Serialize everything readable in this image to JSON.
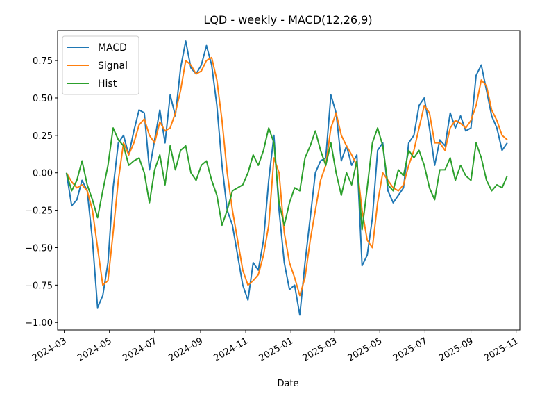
{
  "chart_data": {
    "type": "line",
    "title": "LQD - weekly - MACD(12,26,9)",
    "xlabel": "Date",
    "ylabel": "",
    "ylim": [
      -1.05,
      0.95
    ],
    "xlim": [
      "2024-02-21",
      "2025-11-06"
    ],
    "yticks": [
      -1.0,
      -0.75,
      -0.5,
      -0.25,
      0.0,
      0.25,
      0.5,
      0.75
    ],
    "ytick_labels": [
      "−1.00",
      "−0.75",
      "−0.50",
      "−0.25",
      "0.00",
      "0.25",
      "0.50",
      "0.75"
    ],
    "xticks": [
      "2024-03-01",
      "2024-05-01",
      "2024-07-01",
      "2024-09-01",
      "2024-11-01",
      "2025-01-01",
      "2025-03-01",
      "2025-05-01",
      "2025-07-01",
      "2025-09-01",
      "2025-11-01"
    ],
    "xtick_labels": [
      "2024-03",
      "2024-05",
      "2024-07",
      "2024-09",
      "2024-11",
      "2025-01",
      "2025-03",
      "2025-05",
      "2025-07",
      "2025-09",
      "2025-11"
    ],
    "legend": "upper left",
    "grid": false,
    "series": [
      {
        "name": "MACD",
        "color": "#1f77b4",
        "points": [
          [
            "2024-03-04",
            0.0
          ],
          [
            "2024-03-11",
            -0.22
          ],
          [
            "2024-03-18",
            -0.18
          ],
          [
            "2024-03-25",
            -0.05
          ],
          [
            "2024-04-01",
            -0.12
          ],
          [
            "2024-04-08",
            -0.45
          ],
          [
            "2024-04-15",
            -0.9
          ],
          [
            "2024-04-22",
            -0.82
          ],
          [
            "2024-04-29",
            -0.6
          ],
          [
            "2024-05-06",
            -0.1
          ],
          [
            "2024-05-13",
            0.2
          ],
          [
            "2024-05-20",
            0.25
          ],
          [
            "2024-05-27",
            0.12
          ],
          [
            "2024-06-03",
            0.28
          ],
          [
            "2024-06-10",
            0.42
          ],
          [
            "2024-06-17",
            0.4
          ],
          [
            "2024-06-24",
            0.02
          ],
          [
            "2024-07-01",
            0.22
          ],
          [
            "2024-07-08",
            0.42
          ],
          [
            "2024-07-15",
            0.2
          ],
          [
            "2024-07-22",
            0.52
          ],
          [
            "2024-07-29",
            0.38
          ],
          [
            "2024-08-05",
            0.7
          ],
          [
            "2024-08-12",
            0.88
          ],
          [
            "2024-08-19",
            0.7
          ],
          [
            "2024-08-26",
            0.66
          ],
          [
            "2024-09-02",
            0.72
          ],
          [
            "2024-09-09",
            0.85
          ],
          [
            "2024-09-16",
            0.72
          ],
          [
            "2024-09-23",
            0.45
          ],
          [
            "2024-09-30",
            0.05
          ],
          [
            "2024-10-07",
            -0.25
          ],
          [
            "2024-10-14",
            -0.35
          ],
          [
            "2024-10-21",
            -0.55
          ],
          [
            "2024-10-28",
            -0.75
          ],
          [
            "2024-11-04",
            -0.85
          ],
          [
            "2024-11-11",
            -0.6
          ],
          [
            "2024-11-18",
            -0.65
          ],
          [
            "2024-11-25",
            -0.45
          ],
          [
            "2024-12-02",
            -0.05
          ],
          [
            "2024-12-09",
            0.25
          ],
          [
            "2024-12-16",
            -0.25
          ],
          [
            "2024-12-23",
            -0.6
          ],
          [
            "2024-12-30",
            -0.78
          ],
          [
            "2025-01-06",
            -0.75
          ],
          [
            "2025-01-13",
            -0.95
          ],
          [
            "2025-01-20",
            -0.6
          ],
          [
            "2025-01-27",
            -0.3
          ],
          [
            "2025-02-03",
            0.0
          ],
          [
            "2025-02-10",
            0.08
          ],
          [
            "2025-02-17",
            0.1
          ],
          [
            "2025-02-24",
            0.52
          ],
          [
            "2025-03-03",
            0.4
          ],
          [
            "2025-03-10",
            0.08
          ],
          [
            "2025-03-17",
            0.18
          ],
          [
            "2025-03-24",
            0.05
          ],
          [
            "2025-03-31",
            0.12
          ],
          [
            "2025-04-07",
            -0.62
          ],
          [
            "2025-04-14",
            -0.55
          ],
          [
            "2025-04-21",
            -0.3
          ],
          [
            "2025-04-28",
            0.15
          ],
          [
            "2025-05-05",
            0.2
          ],
          [
            "2025-05-12",
            -0.12
          ],
          [
            "2025-05-19",
            -0.2
          ],
          [
            "2025-05-26",
            -0.15
          ],
          [
            "2025-06-02",
            -0.1
          ],
          [
            "2025-06-09",
            0.2
          ],
          [
            "2025-06-16",
            0.25
          ],
          [
            "2025-06-23",
            0.45
          ],
          [
            "2025-06-30",
            0.5
          ],
          [
            "2025-07-07",
            0.3
          ],
          [
            "2025-07-14",
            0.05
          ],
          [
            "2025-07-21",
            0.22
          ],
          [
            "2025-07-28",
            0.18
          ],
          [
            "2025-08-04",
            0.4
          ],
          [
            "2025-08-11",
            0.3
          ],
          [
            "2025-08-18",
            0.38
          ],
          [
            "2025-08-25",
            0.28
          ],
          [
            "2025-09-01",
            0.3
          ],
          [
            "2025-09-08",
            0.65
          ],
          [
            "2025-09-15",
            0.72
          ],
          [
            "2025-09-22",
            0.55
          ],
          [
            "2025-09-29",
            0.38
          ],
          [
            "2025-10-06",
            0.3
          ],
          [
            "2025-10-13",
            0.15
          ],
          [
            "2025-10-20",
            0.2
          ]
        ]
      },
      {
        "name": "Signal",
        "color": "#ff7f0e",
        "points": [
          [
            "2024-03-04",
            0.0
          ],
          [
            "2024-03-11",
            -0.06
          ],
          [
            "2024-03-18",
            -0.1
          ],
          [
            "2024-03-25",
            -0.08
          ],
          [
            "2024-04-01",
            -0.12
          ],
          [
            "2024-04-08",
            -0.25
          ],
          [
            "2024-04-15",
            -0.5
          ],
          [
            "2024-04-22",
            -0.75
          ],
          [
            "2024-04-29",
            -0.72
          ],
          [
            "2024-05-06",
            -0.4
          ],
          [
            "2024-05-13",
            -0.05
          ],
          [
            "2024-05-20",
            0.2
          ],
          [
            "2024-05-27",
            0.12
          ],
          [
            "2024-06-03",
            0.2
          ],
          [
            "2024-06-10",
            0.32
          ],
          [
            "2024-06-17",
            0.36
          ],
          [
            "2024-06-24",
            0.25
          ],
          [
            "2024-07-01",
            0.2
          ],
          [
            "2024-07-08",
            0.34
          ],
          [
            "2024-07-15",
            0.28
          ],
          [
            "2024-07-22",
            0.3
          ],
          [
            "2024-07-29",
            0.4
          ],
          [
            "2024-08-05",
            0.55
          ],
          [
            "2024-08-12",
            0.75
          ],
          [
            "2024-08-19",
            0.72
          ],
          [
            "2024-08-26",
            0.66
          ],
          [
            "2024-09-02",
            0.68
          ],
          [
            "2024-09-09",
            0.75
          ],
          [
            "2024-09-16",
            0.77
          ],
          [
            "2024-09-23",
            0.62
          ],
          [
            "2024-09-30",
            0.35
          ],
          [
            "2024-10-07",
            0.0
          ],
          [
            "2024-10-14",
            -0.25
          ],
          [
            "2024-10-21",
            -0.45
          ],
          [
            "2024-10-28",
            -0.65
          ],
          [
            "2024-11-04",
            -0.75
          ],
          [
            "2024-11-11",
            -0.72
          ],
          [
            "2024-11-18",
            -0.68
          ],
          [
            "2024-11-25",
            -0.55
          ],
          [
            "2024-12-02",
            -0.35
          ],
          [
            "2024-12-09",
            0.1
          ],
          [
            "2024-12-16",
            0.0
          ],
          [
            "2024-12-23",
            -0.4
          ],
          [
            "2024-12-30",
            -0.6
          ],
          [
            "2025-01-06",
            -0.7
          ],
          [
            "2025-01-13",
            -0.82
          ],
          [
            "2025-01-20",
            -0.7
          ],
          [
            "2025-01-27",
            -0.45
          ],
          [
            "2025-02-03",
            -0.25
          ],
          [
            "2025-02-10",
            -0.05
          ],
          [
            "2025-02-17",
            0.05
          ],
          [
            "2025-02-24",
            0.3
          ],
          [
            "2025-03-03",
            0.4
          ],
          [
            "2025-03-10",
            0.25
          ],
          [
            "2025-03-17",
            0.18
          ],
          [
            "2025-03-24",
            0.12
          ],
          [
            "2025-03-31",
            0.05
          ],
          [
            "2025-04-07",
            -0.25
          ],
          [
            "2025-04-14",
            -0.45
          ],
          [
            "2025-04-21",
            -0.5
          ],
          [
            "2025-04-28",
            -0.2
          ],
          [
            "2025-05-05",
            0.0
          ],
          [
            "2025-05-12",
            -0.05
          ],
          [
            "2025-05-19",
            -0.1
          ],
          [
            "2025-05-26",
            -0.12
          ],
          [
            "2025-06-02",
            -0.08
          ],
          [
            "2025-06-09",
            0.05
          ],
          [
            "2025-06-16",
            0.15
          ],
          [
            "2025-06-23",
            0.3
          ],
          [
            "2025-06-30",
            0.45
          ],
          [
            "2025-07-07",
            0.4
          ],
          [
            "2025-07-14",
            0.2
          ],
          [
            "2025-07-21",
            0.2
          ],
          [
            "2025-07-28",
            0.15
          ],
          [
            "2025-08-04",
            0.3
          ],
          [
            "2025-08-11",
            0.35
          ],
          [
            "2025-08-18",
            0.33
          ],
          [
            "2025-08-25",
            0.3
          ],
          [
            "2025-09-01",
            0.35
          ],
          [
            "2025-09-08",
            0.45
          ],
          [
            "2025-09-15",
            0.62
          ],
          [
            "2025-09-22",
            0.58
          ],
          [
            "2025-09-29",
            0.42
          ],
          [
            "2025-10-06",
            0.35
          ],
          [
            "2025-10-13",
            0.25
          ],
          [
            "2025-10-20",
            0.22
          ]
        ]
      },
      {
        "name": "Hist",
        "color": "#2ca02c",
        "points": [
          [
            "2024-03-04",
            0.0
          ],
          [
            "2024-03-11",
            -0.12
          ],
          [
            "2024-03-18",
            -0.05
          ],
          [
            "2024-03-25",
            0.08
          ],
          [
            "2024-04-01",
            -0.08
          ],
          [
            "2024-04-08",
            -0.18
          ],
          [
            "2024-04-15",
            -0.3
          ],
          [
            "2024-04-22",
            -0.12
          ],
          [
            "2024-04-29",
            0.05
          ],
          [
            "2024-05-06",
            0.3
          ],
          [
            "2024-05-13",
            0.22
          ],
          [
            "2024-05-20",
            0.18
          ],
          [
            "2024-05-27",
            0.05
          ],
          [
            "2024-06-03",
            0.08
          ],
          [
            "2024-06-10",
            0.1
          ],
          [
            "2024-06-17",
            0.0
          ],
          [
            "2024-06-24",
            -0.2
          ],
          [
            "2024-07-01",
            0.02
          ],
          [
            "2024-07-08",
            0.12
          ],
          [
            "2024-07-15",
            -0.08
          ],
          [
            "2024-07-22",
            0.18
          ],
          [
            "2024-07-29",
            0.02
          ],
          [
            "2024-08-05",
            0.15
          ],
          [
            "2024-08-12",
            0.18
          ],
          [
            "2024-08-19",
            0.0
          ],
          [
            "2024-08-26",
            -0.05
          ],
          [
            "2024-09-02",
            0.05
          ],
          [
            "2024-09-09",
            0.08
          ],
          [
            "2024-09-16",
            -0.05
          ],
          [
            "2024-09-23",
            -0.15
          ],
          [
            "2024-09-30",
            -0.35
          ],
          [
            "2024-10-07",
            -0.25
          ],
          [
            "2024-10-14",
            -0.12
          ],
          [
            "2024-10-21",
            -0.1
          ],
          [
            "2024-10-28",
            -0.08
          ],
          [
            "2024-11-04",
            0.0
          ],
          [
            "2024-11-11",
            0.12
          ],
          [
            "2024-11-18",
            0.05
          ],
          [
            "2024-11-25",
            0.15
          ],
          [
            "2024-12-02",
            0.3
          ],
          [
            "2024-12-09",
            0.2
          ],
          [
            "2024-12-16",
            -0.2
          ],
          [
            "2024-12-23",
            -0.35
          ],
          [
            "2024-12-30",
            -0.2
          ],
          [
            "2025-01-06",
            -0.1
          ],
          [
            "2025-01-13",
            -0.12
          ],
          [
            "2025-01-20",
            0.1
          ],
          [
            "2025-01-27",
            0.18
          ],
          [
            "2025-02-03",
            0.28
          ],
          [
            "2025-02-10",
            0.15
          ],
          [
            "2025-02-17",
            0.05
          ],
          [
            "2025-02-24",
            0.2
          ],
          [
            "2025-03-03",
            0.0
          ],
          [
            "2025-03-10",
            -0.15
          ],
          [
            "2025-03-17",
            0.0
          ],
          [
            "2025-03-24",
            -0.08
          ],
          [
            "2025-03-31",
            0.08
          ],
          [
            "2025-04-07",
            -0.38
          ],
          [
            "2025-04-14",
            -0.1
          ],
          [
            "2025-04-21",
            0.2
          ],
          [
            "2025-04-28",
            0.3
          ],
          [
            "2025-05-05",
            0.18
          ],
          [
            "2025-05-12",
            -0.08
          ],
          [
            "2025-05-19",
            -0.12
          ],
          [
            "2025-05-26",
            0.02
          ],
          [
            "2025-06-02",
            -0.02
          ],
          [
            "2025-06-09",
            0.15
          ],
          [
            "2025-06-16",
            0.1
          ],
          [
            "2025-06-23",
            0.15
          ],
          [
            "2025-06-30",
            0.05
          ],
          [
            "2025-07-07",
            -0.1
          ],
          [
            "2025-07-14",
            -0.18
          ],
          [
            "2025-07-21",
            0.02
          ],
          [
            "2025-07-28",
            0.02
          ],
          [
            "2025-08-04",
            0.1
          ],
          [
            "2025-08-11",
            -0.05
          ],
          [
            "2025-08-18",
            0.05
          ],
          [
            "2025-08-25",
            -0.02
          ],
          [
            "2025-09-01",
            -0.05
          ],
          [
            "2025-09-08",
            0.2
          ],
          [
            "2025-09-15",
            0.1
          ],
          [
            "2025-09-22",
            -0.05
          ],
          [
            "2025-09-29",
            -0.12
          ],
          [
            "2025-10-06",
            -0.08
          ],
          [
            "2025-10-13",
            -0.1
          ],
          [
            "2025-10-20",
            -0.02
          ]
        ]
      }
    ]
  }
}
